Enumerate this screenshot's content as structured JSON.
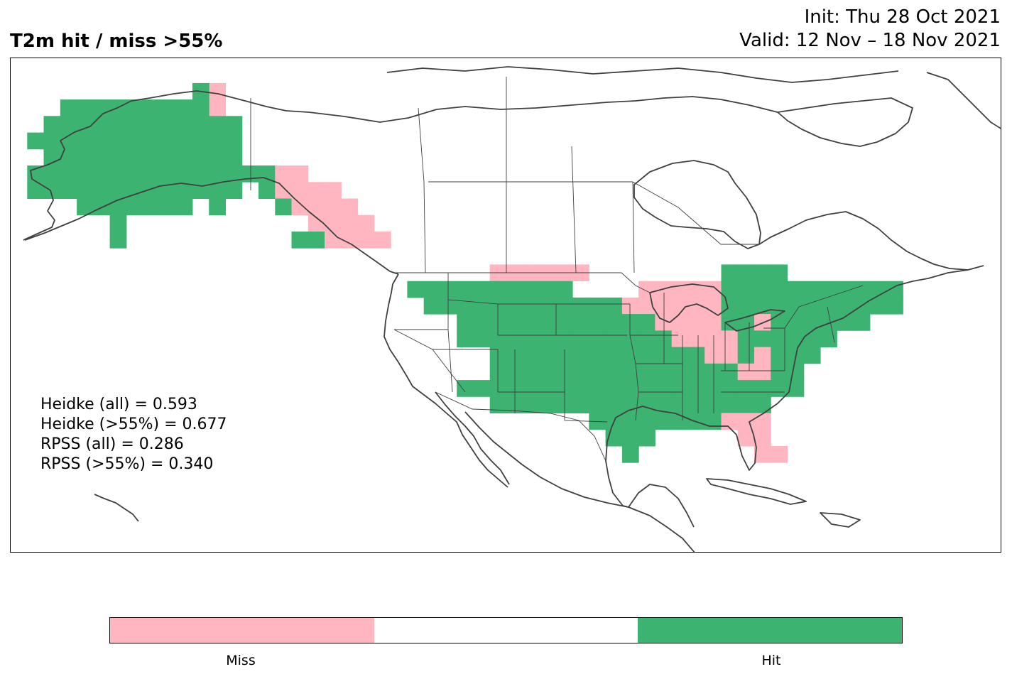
{
  "title": "T2m hit / miss  >55%",
  "init": "Init: Thu 28 Oct 2021",
  "valid": "Valid: 12 Nov – 18 Nov 2021",
  "colors": {
    "hit": "#3cb371",
    "miss": "#ffb6c1",
    "neutral": "#ffffff",
    "coast": "#404040"
  },
  "stats": {
    "heidke_all": "Heidke (all) = 0.593",
    "heidke_55": "Heidke (>55%) = 0.677",
    "rpss_all": "RPSS (all) = 0.286",
    "rpss_55": "RPSS (>55%) = 0.340"
  },
  "legend": {
    "miss": "Miss",
    "hit": "Hit"
  },
  "chart_data": {
    "type": "heatmap",
    "categories": [
      "Miss",
      "",
      "Hit"
    ],
    "extent": {
      "lon": [
        -172,
        -52
      ],
      "lat": [
        15,
        75
      ]
    },
    "cell_size_deg": 2,
    "cells": [
      [
        "miss",
        -147,
        71
      ],
      [
        "hit",
        -149,
        71
      ],
      [
        "miss",
        -147,
        69
      ],
      [
        "hit",
        -165,
        69
      ],
      [
        "hit",
        -163,
        69
      ],
      [
        "hit",
        -161,
        69
      ],
      [
        "hit",
        -159,
        69
      ],
      [
        "hit",
        -157,
        69
      ],
      [
        "hit",
        -155,
        69
      ],
      [
        "hit",
        -153,
        69
      ],
      [
        "hit",
        -151,
        69
      ],
      [
        "hit",
        -149,
        69
      ],
      [
        "hit",
        -167,
        67
      ],
      [
        "hit",
        -165,
        67
      ],
      [
        "hit",
        -163,
        67
      ],
      [
        "hit",
        -161,
        67
      ],
      [
        "hit",
        -159,
        67
      ],
      [
        "hit",
        -157,
        67
      ],
      [
        "hit",
        -155,
        67
      ],
      [
        "hit",
        -153,
        67
      ],
      [
        "hit",
        -151,
        67
      ],
      [
        "hit",
        -149,
        67
      ],
      [
        "hit",
        -147,
        67
      ],
      [
        "hit",
        -145,
        67
      ],
      [
        "hit",
        -169,
        65
      ],
      [
        "hit",
        -167,
        65
      ],
      [
        "hit",
        -165,
        65
      ],
      [
        "hit",
        -163,
        65
      ],
      [
        "hit",
        -161,
        65
      ],
      [
        "hit",
        -159,
        65
      ],
      [
        "hit",
        -157,
        65
      ],
      [
        "hit",
        -155,
        65
      ],
      [
        "hit",
        -153,
        65
      ],
      [
        "hit",
        -151,
        65
      ],
      [
        "hit",
        -149,
        65
      ],
      [
        "hit",
        -147,
        65
      ],
      [
        "hit",
        -145,
        65
      ],
      [
        "hit",
        -167,
        63
      ],
      [
        "hit",
        -165,
        63
      ],
      [
        "hit",
        -163,
        63
      ],
      [
        "hit",
        -161,
        63
      ],
      [
        "hit",
        -159,
        63
      ],
      [
        "hit",
        -157,
        63
      ],
      [
        "hit",
        -155,
        63
      ],
      [
        "hit",
        -153,
        63
      ],
      [
        "hit",
        -151,
        63
      ],
      [
        "hit",
        -149,
        63
      ],
      [
        "hit",
        -147,
        63
      ],
      [
        "hit",
        -145,
        63
      ],
      [
        "hit",
        -169,
        61
      ],
      [
        "hit",
        -167,
        61
      ],
      [
        "hit",
        -165,
        61
      ],
      [
        "hit",
        -163,
        61
      ],
      [
        "hit",
        -161,
        61
      ],
      [
        "hit",
        -159,
        61
      ],
      [
        "hit",
        -157,
        61
      ],
      [
        "hit",
        -155,
        61
      ],
      [
        "hit",
        -153,
        61
      ],
      [
        "hit",
        -151,
        61
      ],
      [
        "hit",
        -149,
        61
      ],
      [
        "hit",
        -147,
        61
      ],
      [
        "hit",
        -145,
        61
      ],
      [
        "hit",
        -143,
        61
      ],
      [
        "hit",
        -141,
        61
      ],
      [
        "miss",
        -139,
        61
      ],
      [
        "miss",
        -137,
        61
      ],
      [
        "hit",
        -169,
        59
      ],
      [
        "hit",
        -167,
        59
      ],
      [
        "hit",
        -165,
        59
      ],
      [
        "hit",
        -163,
        59
      ],
      [
        "hit",
        -161,
        59
      ],
      [
        "hit",
        -159,
        59
      ],
      [
        "hit",
        -157,
        59
      ],
      [
        "hit",
        -155,
        59
      ],
      [
        "hit",
        -153,
        59
      ],
      [
        "hit",
        -151,
        59
      ],
      [
        "hit",
        -149,
        59
      ],
      [
        "hit",
        -147,
        59
      ],
      [
        "hit",
        -145,
        59
      ],
      [
        "hit",
        -141,
        59
      ],
      [
        "miss",
        -139,
        59
      ],
      [
        "miss",
        -137,
        59
      ],
      [
        "miss",
        -135,
        59
      ],
      [
        "miss",
        -133,
        59
      ],
      [
        "hit",
        -163,
        57
      ],
      [
        "hit",
        -161,
        57
      ],
      [
        "hit",
        -159,
        57
      ],
      [
        "hit",
        -157,
        57
      ],
      [
        "hit",
        -155,
        57
      ],
      [
        "hit",
        -153,
        57
      ],
      [
        "hit",
        -151,
        57
      ],
      [
        "hit",
        -147,
        57
      ],
      [
        "hit",
        -139,
        57
      ],
      [
        "miss",
        -137,
        57
      ],
      [
        "miss",
        -135,
        57
      ],
      [
        "miss",
        -133,
        57
      ],
      [
        "miss",
        -131,
        57
      ],
      [
        "hit",
        -159,
        55
      ],
      [
        "miss",
        -135,
        55
      ],
      [
        "miss",
        -133,
        55
      ],
      [
        "miss",
        -131,
        55
      ],
      [
        "miss",
        -129,
        55
      ],
      [
        "hit",
        -159,
        53
      ],
      [
        "hit",
        -137,
        53
      ],
      [
        "hit",
        -135,
        53
      ],
      [
        "miss",
        -133,
        53
      ],
      [
        "miss",
        -131,
        53
      ],
      [
        "miss",
        -129,
        53
      ],
      [
        "miss",
        -127,
        53
      ],
      [
        "miss",
        -113,
        49
      ],
      [
        "miss",
        -111,
        49
      ],
      [
        "miss",
        -109,
        49
      ],
      [
        "miss",
        -107,
        49
      ],
      [
        "miss",
        -105,
        49
      ],
      [
        "miss",
        -103,
        49
      ],
      [
        "hit",
        -85,
        49
      ],
      [
        "hit",
        -83,
        49
      ],
      [
        "hit",
        -81,
        49
      ],
      [
        "hit",
        -79,
        49
      ],
      [
        "hit",
        -123,
        47
      ],
      [
        "hit",
        -121,
        47
      ],
      [
        "hit",
        -119,
        47
      ],
      [
        "hit",
        -117,
        47
      ],
      [
        "hit",
        -115,
        47
      ],
      [
        "hit",
        -113,
        47
      ],
      [
        "hit",
        -111,
        47
      ],
      [
        "hit",
        -109,
        47
      ],
      [
        "hit",
        -107,
        47
      ],
      [
        "hit",
        -105,
        47
      ],
      [
        "miss",
        -95,
        47
      ],
      [
        "miss",
        -93,
        47
      ],
      [
        "miss",
        -91,
        47
      ],
      [
        "miss",
        -89,
        47
      ],
      [
        "miss",
        -87,
        47
      ],
      [
        "hit",
        -85,
        47
      ],
      [
        "hit",
        -83,
        47
      ],
      [
        "hit",
        -81,
        47
      ],
      [
        "hit",
        -79,
        47
      ],
      [
        "hit",
        -77,
        47
      ],
      [
        "hit",
        -75,
        47
      ],
      [
        "hit",
        -73,
        47
      ],
      [
        "hit",
        -71,
        47
      ],
      [
        "hit",
        -69,
        47
      ],
      [
        "hit",
        -67,
        47
      ],
      [
        "hit",
        -65,
        47
      ],
      [
        "hit",
        -121,
        45
      ],
      [
        "hit",
        -119,
        45
      ],
      [
        "hit",
        -117,
        45
      ],
      [
        "hit",
        -115,
        45
      ],
      [
        "hit",
        -113,
        45
      ],
      [
        "hit",
        -111,
        45
      ],
      [
        "hit",
        -109,
        45
      ],
      [
        "hit",
        -107,
        45
      ],
      [
        "hit",
        -105,
        45
      ],
      [
        "hit",
        -103,
        45
      ],
      [
        "hit",
        -101,
        45
      ],
      [
        "hit",
        -99,
        45
      ],
      [
        "miss",
        -97,
        45
      ],
      [
        "miss",
        -95,
        45
      ],
      [
        "miss",
        -93,
        45
      ],
      [
        "miss",
        -91,
        45
      ],
      [
        "miss",
        -89,
        45
      ],
      [
        "miss",
        -87,
        45
      ],
      [
        "hit",
        -85,
        45
      ],
      [
        "hit",
        -83,
        45
      ],
      [
        "hit",
        -81,
        45
      ],
      [
        "hit",
        -79,
        45
      ],
      [
        "hit",
        -77,
        45
      ],
      [
        "hit",
        -75,
        45
      ],
      [
        "hit",
        -73,
        45
      ],
      [
        "hit",
        -71,
        45
      ],
      [
        "hit",
        -69,
        45
      ],
      [
        "hit",
        -67,
        45
      ],
      [
        "hit",
        -65,
        45
      ],
      [
        "hit",
        -117,
        43
      ],
      [
        "hit",
        -115,
        43
      ],
      [
        "hit",
        -113,
        43
      ],
      [
        "hit",
        -111,
        43
      ],
      [
        "hit",
        -109,
        43
      ],
      [
        "hit",
        -107,
        43
      ],
      [
        "hit",
        -105,
        43
      ],
      [
        "hit",
        -103,
        43
      ],
      [
        "hit",
        -101,
        43
      ],
      [
        "hit",
        -99,
        43
      ],
      [
        "hit",
        -97,
        43
      ],
      [
        "hit",
        -95,
        43
      ],
      [
        "miss",
        -93,
        43
      ],
      [
        "miss",
        -91,
        43
      ],
      [
        "miss",
        -89,
        43
      ],
      [
        "miss",
        -87,
        43
      ],
      [
        "hit",
        -85,
        43
      ],
      [
        "hit",
        -83,
        43
      ],
      [
        "miss",
        -81,
        43
      ],
      [
        "hit",
        -79,
        43
      ],
      [
        "hit",
        -77,
        43
      ],
      [
        "hit",
        -75,
        43
      ],
      [
        "hit",
        -73,
        43
      ],
      [
        "hit",
        -71,
        43
      ],
      [
        "hit",
        -69,
        43
      ],
      [
        "hit",
        -117,
        41
      ],
      [
        "hit",
        -115,
        41
      ],
      [
        "hit",
        -113,
        41
      ],
      [
        "hit",
        -111,
        41
      ],
      [
        "hit",
        -109,
        41
      ],
      [
        "hit",
        -107,
        41
      ],
      [
        "hit",
        -105,
        41
      ],
      [
        "hit",
        -103,
        41
      ],
      [
        "hit",
        -101,
        41
      ],
      [
        "hit",
        -99,
        41
      ],
      [
        "hit",
        -97,
        41
      ],
      [
        "hit",
        -95,
        41
      ],
      [
        "hit",
        -93,
        41
      ],
      [
        "miss",
        -91,
        41
      ],
      [
        "miss",
        -89,
        41
      ],
      [
        "miss",
        -87,
        41
      ],
      [
        "miss",
        -85,
        41
      ],
      [
        "hit",
        -83,
        41
      ],
      [
        "hit",
        -81,
        41
      ],
      [
        "hit",
        -79,
        41
      ],
      [
        "hit",
        -77,
        41
      ],
      [
        "hit",
        -75,
        41
      ],
      [
        "hit",
        -73,
        41
      ],
      [
        "hit",
        -113,
        39
      ],
      [
        "hit",
        -111,
        39
      ],
      [
        "hit",
        -109,
        39
      ],
      [
        "hit",
        -107,
        39
      ],
      [
        "hit",
        -105,
        39
      ],
      [
        "hit",
        -103,
        39
      ],
      [
        "hit",
        -101,
        39
      ],
      [
        "hit",
        -99,
        39
      ],
      [
        "hit",
        -97,
        39
      ],
      [
        "hit",
        -95,
        39
      ],
      [
        "hit",
        -93,
        39
      ],
      [
        "hit",
        -91,
        39
      ],
      [
        "hit",
        -89,
        39
      ],
      [
        "miss",
        -87,
        39
      ],
      [
        "miss",
        -85,
        39
      ],
      [
        "hit",
        -83,
        39
      ],
      [
        "miss",
        -81,
        39
      ],
      [
        "hit",
        -79,
        39
      ],
      [
        "hit",
        -77,
        39
      ],
      [
        "hit",
        -75,
        39
      ],
      [
        "hit",
        -113,
        37
      ],
      [
        "hit",
        -111,
        37
      ],
      [
        "hit",
        -109,
        37
      ],
      [
        "hit",
        -107,
        37
      ],
      [
        "hit",
        -105,
        37
      ],
      [
        "hit",
        -103,
        37
      ],
      [
        "hit",
        -101,
        37
      ],
      [
        "hit",
        -99,
        37
      ],
      [
        "hit",
        -97,
        37
      ],
      [
        "hit",
        -95,
        37
      ],
      [
        "hit",
        -93,
        37
      ],
      [
        "hit",
        -91,
        37
      ],
      [
        "hit",
        -89,
        37
      ],
      [
        "hit",
        -87,
        37
      ],
      [
        "hit",
        -85,
        37
      ],
      [
        "miss",
        -83,
        37
      ],
      [
        "miss",
        -81,
        37
      ],
      [
        "hit",
        -79,
        37
      ],
      [
        "hit",
        -77,
        37
      ],
      [
        "hit",
        -117,
        35
      ],
      [
        "hit",
        -115,
        35
      ],
      [
        "hit",
        -113,
        35
      ],
      [
        "hit",
        -111,
        35
      ],
      [
        "hit",
        -109,
        35
      ],
      [
        "hit",
        -107,
        35
      ],
      [
        "hit",
        -105,
        35
      ],
      [
        "hit",
        -103,
        35
      ],
      [
        "hit",
        -101,
        35
      ],
      [
        "hit",
        -99,
        35
      ],
      [
        "hit",
        -97,
        35
      ],
      [
        "hit",
        -95,
        35
      ],
      [
        "hit",
        -93,
        35
      ],
      [
        "hit",
        -91,
        35
      ],
      [
        "hit",
        -89,
        35
      ],
      [
        "hit",
        -87,
        35
      ],
      [
        "hit",
        -85,
        35
      ],
      [
        "hit",
        -83,
        35
      ],
      [
        "hit",
        -81,
        35
      ],
      [
        "hit",
        -79,
        35
      ],
      [
        "hit",
        -77,
        35
      ],
      [
        "hit",
        -113,
        33
      ],
      [
        "hit",
        -111,
        33
      ],
      [
        "hit",
        -109,
        33
      ],
      [
        "hit",
        -107,
        33
      ],
      [
        "hit",
        -105,
        33
      ],
      [
        "hit",
        -103,
        33
      ],
      [
        "hit",
        -101,
        33
      ],
      [
        "hit",
        -99,
        33
      ],
      [
        "hit",
        -97,
        33
      ],
      [
        "hit",
        -95,
        33
      ],
      [
        "hit",
        -93,
        33
      ],
      [
        "hit",
        -91,
        33
      ],
      [
        "hit",
        -89,
        33
      ],
      [
        "hit",
        -87,
        33
      ],
      [
        "hit",
        -85,
        33
      ],
      [
        "hit",
        -83,
        33
      ],
      [
        "hit",
        -81,
        33
      ],
      [
        "hit",
        -101,
        31
      ],
      [
        "hit",
        -99,
        31
      ],
      [
        "hit",
        -97,
        31
      ],
      [
        "hit",
        -95,
        31
      ],
      [
        "hit",
        -93,
        31
      ],
      [
        "hit",
        -91,
        31
      ],
      [
        "hit",
        -89,
        31
      ],
      [
        "hit",
        -87,
        31
      ],
      [
        "miss",
        -85,
        31
      ],
      [
        "miss",
        -83,
        31
      ],
      [
        "miss",
        -81,
        31
      ],
      [
        "hit",
        -99,
        29
      ],
      [
        "hit",
        -97,
        29
      ],
      [
        "hit",
        -95,
        29
      ],
      [
        "miss",
        -83,
        29
      ],
      [
        "miss",
        -81,
        29
      ],
      [
        "hit",
        -97,
        27
      ],
      [
        "miss",
        -81,
        27
      ],
      [
        "miss",
        -79,
        27
      ]
    ]
  }
}
